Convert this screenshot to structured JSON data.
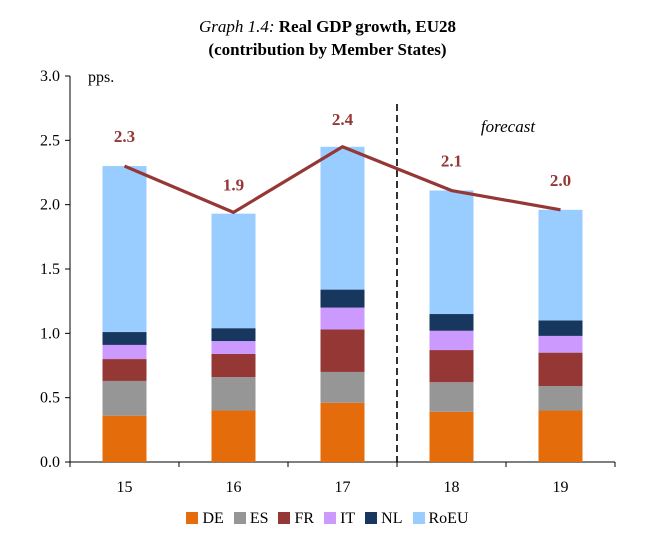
{
  "chart_data": {
    "type": "bar",
    "title_prefix": "Graph 1.4:",
    "title_main": "Real GDP growth,  EU28",
    "subtitle": "(contribution by Member States)",
    "ylabel": "pps.",
    "ylim": [
      0,
      3.0
    ],
    "yticks": [
      "0.0",
      "0.5",
      "1.0",
      "1.5",
      "2.0",
      "2.5",
      "3.0"
    ],
    "categories": [
      "15",
      "16",
      "17",
      "18",
      "19"
    ],
    "forecast_label": "forecast",
    "stacked": true,
    "series": [
      {
        "name": "DE",
        "color": "#e46c0a",
        "values": [
          0.36,
          0.4,
          0.46,
          0.39,
          0.4
        ]
      },
      {
        "name": "ES",
        "color": "#969696",
        "values": [
          0.27,
          0.26,
          0.24,
          0.23,
          0.19
        ]
      },
      {
        "name": "FR",
        "color": "#953735",
        "values": [
          0.17,
          0.18,
          0.33,
          0.25,
          0.26
        ]
      },
      {
        "name": "IT",
        "color": "#cc99ff",
        "values": [
          0.11,
          0.1,
          0.17,
          0.15,
          0.13
        ]
      },
      {
        "name": "NL",
        "color": "#17375e",
        "values": [
          0.1,
          0.1,
          0.14,
          0.13,
          0.12
        ]
      },
      {
        "name": "RoEU",
        "color": "#99ccff",
        "values": [
          1.29,
          0.89,
          1.11,
          0.96,
          0.86
        ]
      }
    ],
    "line": {
      "color": "#953735",
      "values": [
        2.3,
        1.94,
        2.45,
        2.11,
        1.96
      ],
      "labels": [
        "2.3",
        "1.9",
        "2.4",
        "2.1",
        "2.0"
      ]
    },
    "grid": false,
    "legend_position": "bottom"
  }
}
